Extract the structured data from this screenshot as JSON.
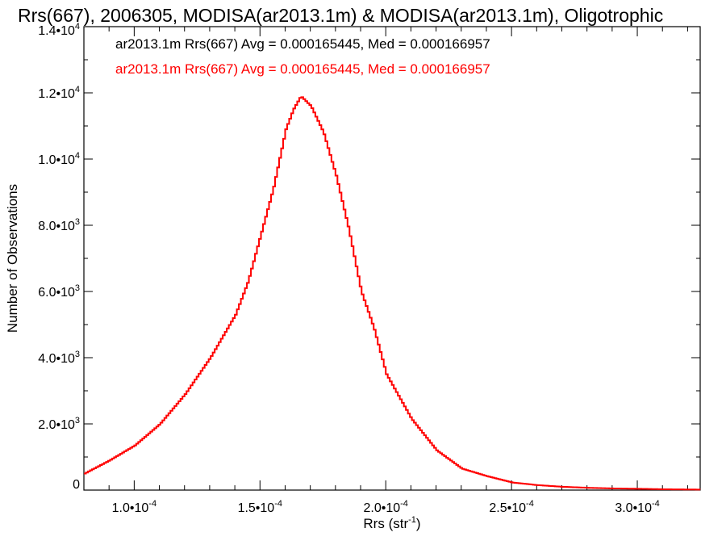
{
  "chart_data": {
    "type": "histogram",
    "title": "Rrs(667), 2006305, MODISA(ar2013.1m) & MODISA(ar2013.1m), Oligotrophic",
    "xlabel": "Rrs (str",
    "xlabel_sup": "-1",
    "xlabel_end": ")",
    "ylabel": "Number of Observations",
    "xlim": [
      8e-05,
      0.000325
    ],
    "ylim": [
      0,
      14000
    ],
    "x_ticks": [
      {
        "value": 0.0001,
        "mant": "1.0•10",
        "exp": "-4"
      },
      {
        "value": 0.00015,
        "mant": "1.5•10",
        "exp": "-4"
      },
      {
        "value": 0.0002,
        "mant": "2.0•10",
        "exp": "-4"
      },
      {
        "value": 0.00025,
        "mant": "2.5•10",
        "exp": "-4"
      },
      {
        "value": 0.0003,
        "mant": "3.0•10",
        "exp": "-4"
      }
    ],
    "y_ticks": [
      {
        "value": 0,
        "mant": "0",
        "exp": ""
      },
      {
        "value": 2000,
        "mant": "2.0•10",
        "exp": "3"
      },
      {
        "value": 4000,
        "mant": "4.0•10",
        "exp": "3"
      },
      {
        "value": 6000,
        "mant": "6.0•10",
        "exp": "3"
      },
      {
        "value": 8000,
        "mant": "8.0•10",
        "exp": "3"
      },
      {
        "value": 10000,
        "mant": "1.0•10",
        "exp": "4"
      },
      {
        "value": 12000,
        "mant": "1.2•10",
        "exp": "4"
      },
      {
        "value": 14000,
        "mant": "1.4•10",
        "exp": "4"
      }
    ],
    "grid": false,
    "legend": [
      {
        "text": "ar2013.1m Rrs(667) Avg = 0.000165445, Med = 0.000166957",
        "color": "#000000"
      },
      {
        "text": "ar2013.1m Rrs(667) Avg = 0.000165445, Med = 0.000166957",
        "color": "#ff0000"
      }
    ],
    "legend_position": "top-left",
    "series": [
      {
        "color": "#ff0000",
        "x": [
          8e-05,
          9e-05,
          0.0001,
          0.00011,
          0.00012,
          0.00013,
          0.00014,
          0.000145,
          0.00015,
          0.000155,
          0.00016,
          0.000163,
          0.000166,
          0.00017,
          0.000175,
          0.00018,
          0.000185,
          0.00019,
          0.000195,
          0.0002,
          0.00021,
          0.00022,
          0.00023,
          0.00024,
          0.00025,
          0.00026,
          0.00027,
          0.00028,
          0.00029,
          0.0003,
          0.00031,
          0.000325
        ],
        "values": [
          500,
          900,
          1350,
          2000,
          2900,
          4000,
          5300,
          6300,
          7700,
          9100,
          10900,
          11500,
          11900,
          11600,
          10800,
          9500,
          7900,
          6000,
          4900,
          3500,
          2150,
          1200,
          650,
          420,
          230,
          150,
          100,
          70,
          50,
          40,
          25,
          15
        ]
      }
    ]
  }
}
